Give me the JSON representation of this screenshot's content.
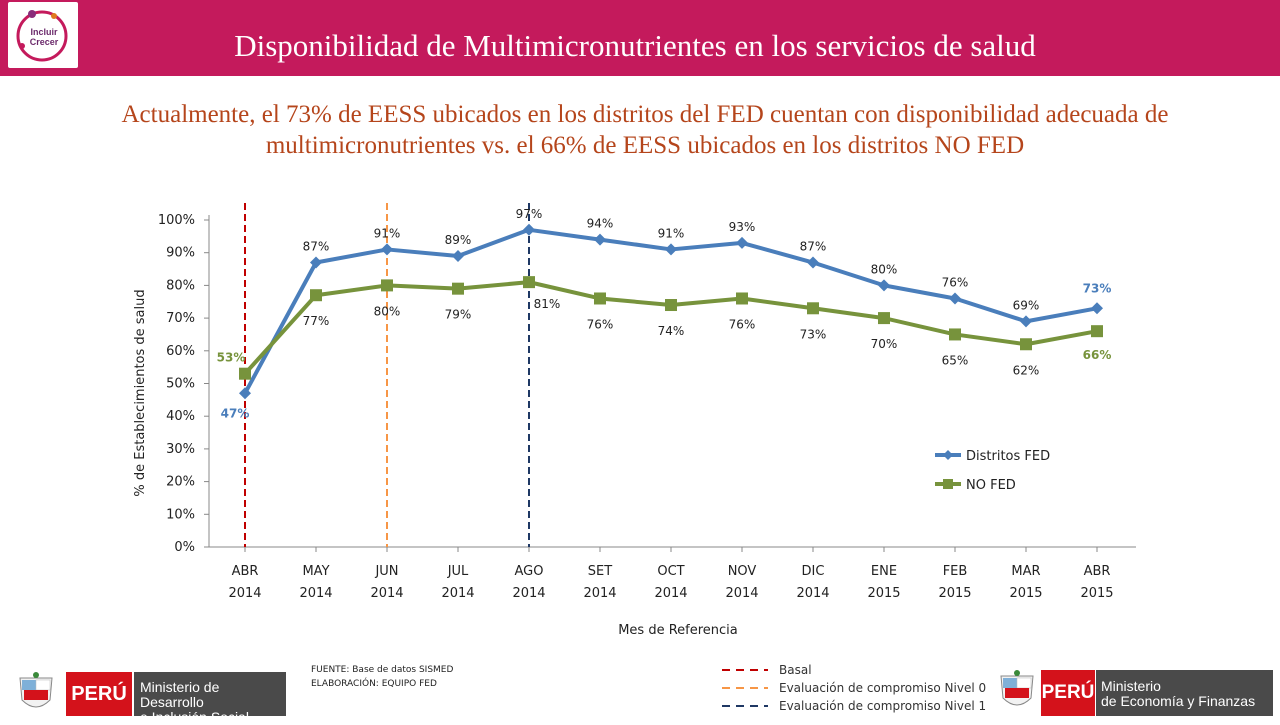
{
  "header": {
    "title": "Disponibilidad de Multimicronutrientes en los servicios de salud",
    "logo_text_1": "Incluir",
    "logo_text_2": "Crecer",
    "bg_color": "#c41a5c"
  },
  "subtitle": "Actualmente, el 73% de EESS ubicados en los distritos del FED cuentan con disponibilidad adecuada de multimicronutrientes vs. el 66% de EESS ubicados en los distritos NO FED",
  "chart_data": {
    "type": "line",
    "categories": [
      [
        "ABR",
        "2014"
      ],
      [
        "MAY",
        "2014"
      ],
      [
        "JUN",
        "2014"
      ],
      [
        "JUL",
        "2014"
      ],
      [
        "AGO",
        "2014"
      ],
      [
        "SET",
        "2014"
      ],
      [
        "OCT",
        "2014"
      ],
      [
        "NOV",
        "2014"
      ],
      [
        "DIC",
        "2014"
      ],
      [
        "ENE",
        "2015"
      ],
      [
        "FEB",
        "2015"
      ],
      [
        "MAR",
        "2015"
      ],
      [
        "ABR",
        "2015"
      ]
    ],
    "series": [
      {
        "name": "Distritos FED",
        "color": "#4a7ebb",
        "marker": "diamond",
        "values": [
          47,
          87,
          91,
          89,
          97,
          94,
          91,
          93,
          87,
          80,
          76,
          69,
          73
        ],
        "labels": [
          "47%",
          "87%",
          "91%",
          "89%",
          "97%",
          "94%",
          "91%",
          "93%",
          "87%",
          "80%",
          "76%",
          "69%",
          "73%"
        ]
      },
      {
        "name": "NO FED",
        "color": "#77933c",
        "marker": "square",
        "values": [
          53,
          77,
          80,
          79,
          81,
          76,
          74,
          76,
          73,
          70,
          65,
          62,
          66
        ],
        "labels": [
          "53%",
          "77%",
          "80%",
          "79%",
          "81%",
          "76%",
          "74%",
          "76%",
          "73%",
          "70%",
          "65%",
          "62%",
          "66%"
        ]
      }
    ],
    "xlabel": "Mes de Referencia",
    "ylabel": "% de Establecimientos de salud",
    "ylim": [
      0,
      100
    ],
    "yticks": [
      "0%",
      "10%",
      "20%",
      "30%",
      "40%",
      "50%",
      "60%",
      "70%",
      "80%",
      "90%",
      "100%"
    ],
    "legend_position": "right",
    "reference_lines": [
      {
        "category_index": 0,
        "color": "#c00000",
        "name": "Basal"
      },
      {
        "category_index": 2,
        "color": "#f79646",
        "name": "Evaluación de compromiso Nivel 0"
      },
      {
        "category_index": 4,
        "color": "#1f3864",
        "name": "Evaluación de compromiso Nivel 1"
      }
    ]
  },
  "footer": {
    "source_line1": "FUENTE: Base de datos SISMED",
    "source_line2": "ELABORACIÓN: EQUIPO FED",
    "left_peru": "PERÚ",
    "left_ministry_1": "Ministerio de Desarrollo",
    "left_ministry_2": "e Inclusión Social",
    "right_peru": "PERÚ",
    "right_ministry_1": "Ministerio",
    "right_ministry_2": "de Economía y Finanzas"
  }
}
